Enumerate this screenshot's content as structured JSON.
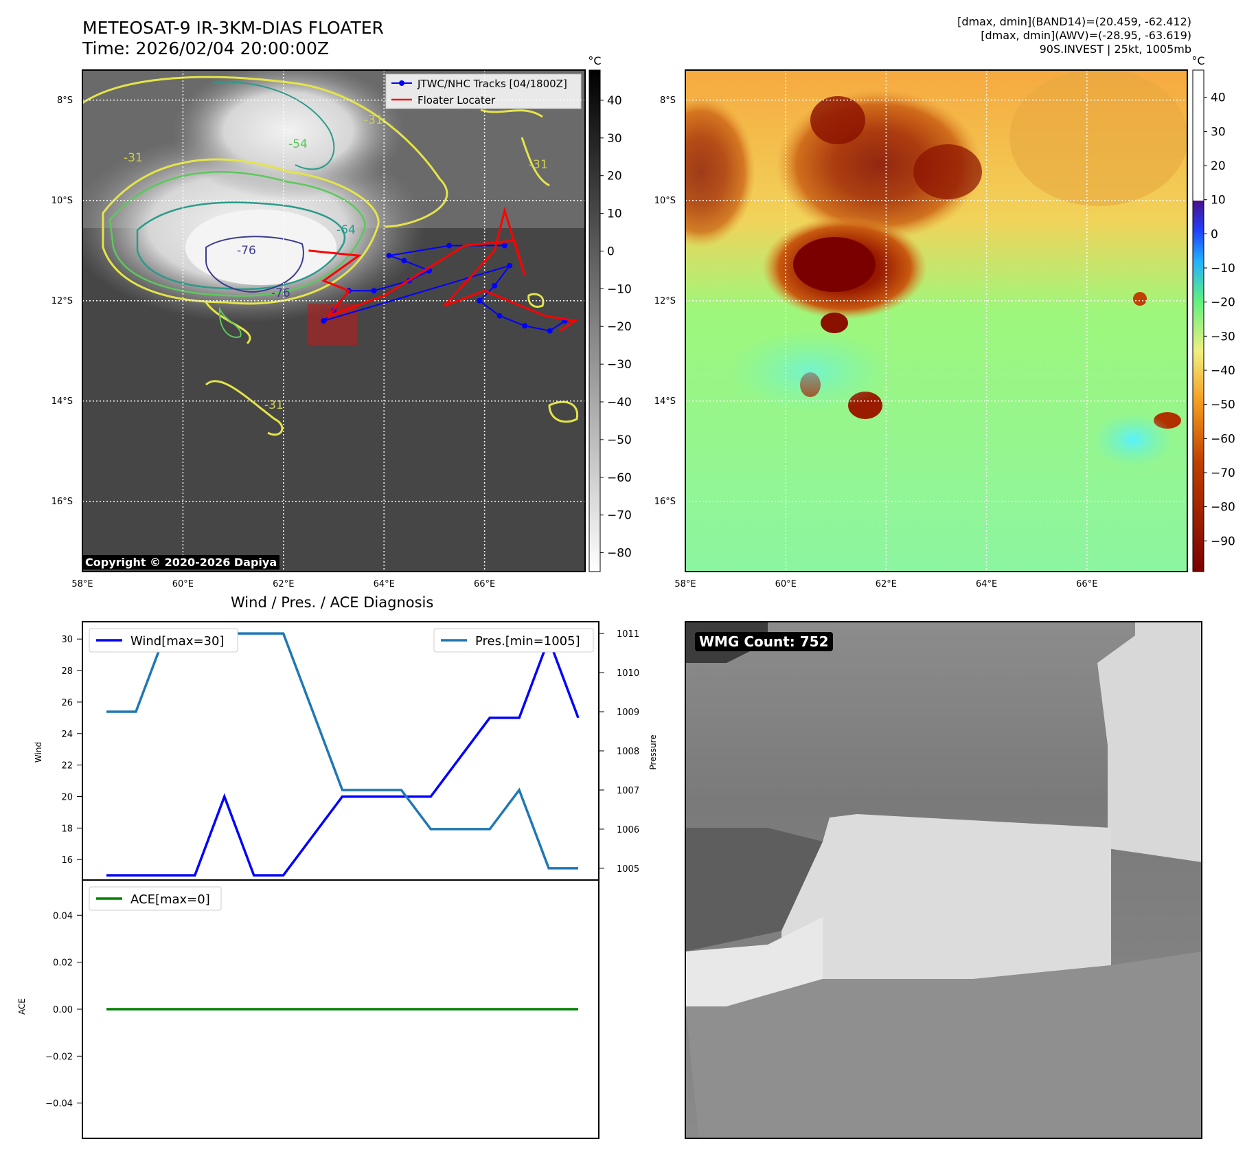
{
  "header": {
    "title_line1": "METEOSAT-9 IR-3KM-DIAS FLOATER",
    "title_line2": "Time: 2026/02/04 20:00:00Z",
    "info_line1": "[dmax, dmin](BAND14)=(20.459, -62.412)",
    "info_line2": "[dmax, dmin](AWV)=(-28.95, -63.619)",
    "info_line3": "90S.INVEST | 25kt, 1005mb"
  },
  "map": {
    "lat_labels": [
      "8°S",
      "10°S",
      "12°S",
      "14°S",
      "16°S"
    ],
    "lon_labels": [
      "58°E",
      "60°E",
      "62°E",
      "64°E",
      "66°E"
    ],
    "lat_values": [
      -8,
      -10,
      -12,
      -14,
      -16
    ],
    "lon_values": [
      58,
      60,
      62,
      64,
      66
    ],
    "lat_range": [
      -17.4,
      -7.4
    ],
    "lon_range": [
      58,
      68
    ],
    "contour_labels": [
      "-76",
      "-76",
      "-64",
      "-54",
      "-31",
      "-31",
      "-31",
      "-31"
    ],
    "legend": {
      "tracks": "JTWC/NHC Tracks [04/1800Z]",
      "locator": "Floater Locater"
    },
    "copyright": "Copyright © 2020-2026 Dapiya",
    "colorbar_unit": "°C",
    "ir_colorbar_ticks": [
      40,
      30,
      20,
      10,
      0,
      -10,
      -20,
      -30,
      -40,
      -50,
      -60,
      -70,
      -80
    ],
    "awv_colorbar_ticks": [
      40,
      30,
      20,
      10,
      0,
      -10,
      -20,
      -30,
      -40,
      -50,
      -60,
      -70,
      -80,
      -90
    ],
    "track_blue": [
      [
        66.4,
        -10.9
      ],
      [
        65.3,
        -10.9
      ],
      [
        64.1,
        -11.1
      ],
      [
        64.4,
        -11.2
      ],
      [
        64.9,
        -11.4
      ],
      [
        64.5,
        -11.6
      ],
      [
        63.8,
        -11.8
      ],
      [
        63.3,
        -11.8
      ],
      [
        63.0,
        -12.2
      ],
      [
        62.8,
        -12.4
      ],
      [
        66.5,
        -11.3
      ],
      [
        66.2,
        -11.7
      ],
      [
        65.9,
        -12.0
      ],
      [
        66.3,
        -12.3
      ],
      [
        66.8,
        -12.5
      ],
      [
        67.3,
        -12.6
      ],
      [
        67.6,
        -12.4
      ]
    ],
    "track_red": [
      [
        62.5,
        -11.0
      ],
      [
        63.5,
        -11.1
      ],
      [
        62.8,
        -11.6
      ],
      [
        63.3,
        -11.8
      ],
      [
        62.9,
        -12.3
      ],
      [
        64.0,
        -11.9
      ],
      [
        65.6,
        -10.9
      ],
      [
        66.6,
        -10.8
      ],
      [
        66.8,
        -11.5
      ],
      [
        66.4,
        -10.2
      ],
      [
        66.2,
        -11.0
      ],
      [
        65.2,
        -12.1
      ],
      [
        66.0,
        -11.8
      ],
      [
        67.2,
        -12.3
      ],
      [
        67.8,
        -12.4
      ],
      [
        67.5,
        -12.6
      ]
    ]
  },
  "diagnosis": {
    "title": "Wind / Pres. / ACE Diagnosis",
    "wind_ylabel": "Wind",
    "pressure_ylabel": "Pressure",
    "ace_ylabel": "ACE",
    "wind_legend": "Wind[max=30]",
    "pressure_legend": "Pres.[min=1005]",
    "ace_legend": "ACE[max=0]"
  },
  "chart_data": [
    {
      "type": "line",
      "x": [
        0,
        1,
        2,
        3,
        4,
        5,
        6,
        7,
        8,
        9,
        10,
        11,
        12,
        13,
        14,
        15,
        16
      ],
      "series": [
        {
          "name": "Wind[max=30]",
          "axis": "left",
          "values": [
            15,
            15,
            15,
            15,
            20,
            15,
            15,
            20,
            20,
            20,
            20,
            25,
            25,
            30,
            25
          ],
          "x": [
            0,
            1,
            2,
            3,
            4,
            5,
            6,
            8,
            9,
            10,
            11,
            13,
            14,
            15,
            16
          ],
          "color": "#0000ff"
        },
        {
          "name": "Pres.[min=1005]",
          "axis": "right",
          "values": [
            1009,
            1009,
            1011,
            1011,
            1011,
            1011,
            1011,
            1009,
            1007,
            1007,
            1007,
            1006,
            1006,
            1006,
            1007,
            1005,
            1005
          ],
          "color": "#1f77b4"
        }
      ],
      "ylabel": "Wind",
      "ylabel_right": "Pressure",
      "y_ticks": [
        16,
        18,
        20,
        22,
        24,
        26,
        28,
        30
      ],
      "y_right_ticks": [
        1005,
        1006,
        1007,
        1008,
        1009,
        1010,
        1011
      ],
      "ylim": [
        14.7,
        31.1
      ],
      "ylim_right": [
        1004.7,
        1011.3
      ]
    },
    {
      "type": "line",
      "x": [
        0,
        16
      ],
      "series": [
        {
          "name": "ACE[max=0]",
          "values": [
            0,
            0
          ],
          "color": "#008000"
        }
      ],
      "ylabel": "ACE",
      "y_ticks": [
        0.04,
        0.02,
        0.0,
        -0.02,
        -0.04
      ],
      "y_tick_labels": [
        "0.04",
        "0.02",
        "0.00",
        "−0.02",
        "−0.04"
      ],
      "ylim": [
        -0.055,
        0.055
      ]
    }
  ],
  "wmg": {
    "label": "WMG Count: 752"
  }
}
